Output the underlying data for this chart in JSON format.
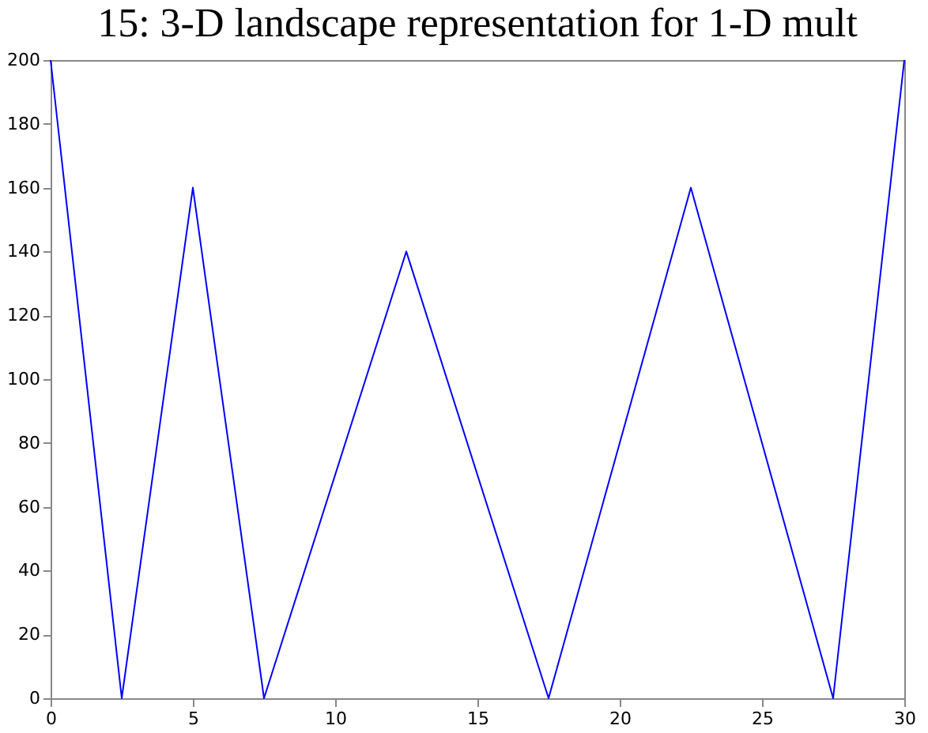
{
  "chart_data": {
    "type": "line",
    "title": "15: 3-D landscape representation for 1-D mult",
    "x": [
      0,
      2.5,
      5,
      7.5,
      12.5,
      17.5,
      22.5,
      27.5,
      30
    ],
    "series": [
      {
        "color": "#0000ff",
        "values": [
          200,
          0,
          160,
          0,
          140,
          0,
          160,
          0,
          200
        ]
      }
    ],
    "xlim": [
      0,
      30
    ],
    "xticks": [
      0,
      5,
      10,
      15,
      20,
      25,
      30
    ],
    "ylim": [
      0,
      200
    ],
    "yticks": [
      0,
      20,
      40,
      60,
      80,
      100,
      120,
      140,
      160,
      180,
      200
    ],
    "grid": false,
    "marker": "none",
    "line_style": "solid"
  }
}
